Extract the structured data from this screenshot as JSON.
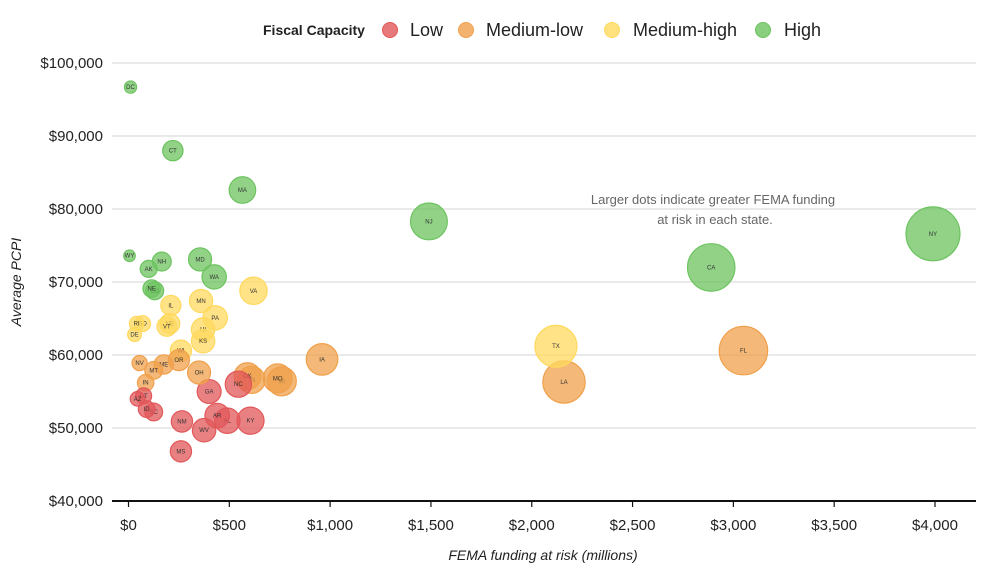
{
  "chart_data": {
    "type": "scatter",
    "xlabel": "FEMA funding at risk (millions)",
    "ylabel": "Average PCPI",
    "xlim": [
      -90,
      4200
    ],
    "ylim": [
      40000,
      100000
    ],
    "x_ticks": [
      0,
      500,
      1000,
      1500,
      2000,
      2500,
      3000,
      3500,
      4000
    ],
    "x_tick_labels": [
      "$0",
      "$500",
      "$1,000",
      "$1,500",
      "$2,000",
      "$2,500",
      "$3,000",
      "$3,500",
      "$4,000"
    ],
    "y_ticks": [
      40000,
      50000,
      60000,
      70000,
      80000,
      90000,
      100000
    ],
    "y_tick_labels": [
      "$40,000",
      "$50,000",
      "$60,000",
      "$70,000",
      "$80,000",
      "$90,000",
      "$100,000"
    ],
    "grid": true,
    "size_encoding": "FEMA funding at risk",
    "annotation": [
      "Larger dots indicate greater FEMA funding",
      "at risk in each state."
    ],
    "legend": {
      "title": "Fiscal Capacity",
      "position": "top",
      "entries": [
        {
          "name": "Low",
          "color": "#e15759"
        },
        {
          "name": "Medium-low",
          "color": "#f0a04b"
        },
        {
          "name": "Medium-high",
          "color": "#ffd95e"
        },
        {
          "name": "High",
          "color": "#6cc35f"
        }
      ]
    },
    "points": [
      {
        "label": "DC",
        "x": 10,
        "y": 96700,
        "group": "High"
      },
      {
        "label": "CT",
        "x": 220,
        "y": 88000,
        "group": "High"
      },
      {
        "label": "MA",
        "x": 565,
        "y": 82600,
        "group": "High"
      },
      {
        "label": "NJ",
        "x": 1490,
        "y": 78300,
        "group": "High"
      },
      {
        "label": "NY",
        "x": 3990,
        "y": 76600,
        "group": "High"
      },
      {
        "label": "CA",
        "x": 2890,
        "y": 72000,
        "group": "High"
      },
      {
        "label": "WY",
        "x": 5,
        "y": 73600,
        "group": "High"
      },
      {
        "label": "NH",
        "x": 165,
        "y": 72800,
        "group": "High"
      },
      {
        "label": "MD",
        "x": 355,
        "y": 73100,
        "group": "High"
      },
      {
        "label": "AK",
        "x": 100,
        "y": 71800,
        "group": "High"
      },
      {
        "label": "WA",
        "x": 425,
        "y": 70700,
        "group": "High"
      },
      {
        "label": "NE",
        "x": 115,
        "y": 69100,
        "group": "High"
      },
      {
        "label": "CO",
        "x": 130,
        "y": 68800,
        "group": "High"
      },
      {
        "label": "VA",
        "x": 620,
        "y": 68800,
        "group": "Medium-high"
      },
      {
        "label": "MN",
        "x": 360,
        "y": 67400,
        "group": "Medium-high"
      },
      {
        "label": "IL",
        "x": 210,
        "y": 66800,
        "group": "Medium-high"
      },
      {
        "label": "PA",
        "x": 430,
        "y": 65100,
        "group": "Medium-high"
      },
      {
        "label": "RI",
        "x": 40,
        "y": 64300,
        "group": "Medium-high"
      },
      {
        "label": "SD",
        "x": 70,
        "y": 64300,
        "group": "Medium-high"
      },
      {
        "label": "NE",
        "x": 205,
        "y": 64300,
        "group": "Medium-high"
      },
      {
        "label": "VT",
        "x": 190,
        "y": 63900,
        "group": "Medium-high"
      },
      {
        "label": "HI",
        "x": 370,
        "y": 63500,
        "group": "Medium-high"
      },
      {
        "label": "DE",
        "x": 30,
        "y": 62800,
        "group": "Medium-high"
      },
      {
        "label": "KS",
        "x": 370,
        "y": 61900,
        "group": "Medium-high"
      },
      {
        "label": "TX",
        "x": 2120,
        "y": 61200,
        "group": "Medium-high"
      },
      {
        "label": "WI",
        "x": 260,
        "y": 60600,
        "group": "Medium-high"
      },
      {
        "label": "FL",
        "x": 3050,
        "y": 60600,
        "group": "Medium-low"
      },
      {
        "label": "IA",
        "x": 960,
        "y": 59400,
        "group": "Medium-low"
      },
      {
        "label": "OR",
        "x": 250,
        "y": 59300,
        "group": "Medium-low"
      },
      {
        "label": "NV",
        "x": 55,
        "y": 58900,
        "group": "Medium-low"
      },
      {
        "label": "ME",
        "x": 175,
        "y": 58700,
        "group": "Medium-low"
      },
      {
        "label": "MT",
        "x": 125,
        "y": 57900,
        "group": "Medium-low"
      },
      {
        "label": "OH",
        "x": 350,
        "y": 57600,
        "group": "Medium-low"
      },
      {
        "label": "OK",
        "x": 590,
        "y": 57100,
        "group": "Medium-low"
      },
      {
        "label": "MO",
        "x": 740,
        "y": 56800,
        "group": "Medium-low"
      },
      {
        "label": "TN",
        "x": 610,
        "y": 56600,
        "group": "Medium-low"
      },
      {
        "label": "MI",
        "x": 760,
        "y": 56400,
        "group": "Medium-low"
      },
      {
        "label": "LA",
        "x": 2160,
        "y": 56300,
        "group": "Medium-low"
      },
      {
        "label": "IN",
        "x": 85,
        "y": 56200,
        "group": "Medium-low"
      },
      {
        "label": "NC",
        "x": 545,
        "y": 56000,
        "group": "Low"
      },
      {
        "label": "GA",
        "x": 400,
        "y": 55000,
        "group": "Low"
      },
      {
        "label": "UT",
        "x": 75,
        "y": 54400,
        "group": "Low"
      },
      {
        "label": "AZ",
        "x": 45,
        "y": 54000,
        "group": "Low"
      },
      {
        "label": "ID",
        "x": 90,
        "y": 52600,
        "group": "Low"
      },
      {
        "label": "SC",
        "x": 125,
        "y": 52200,
        "group": "Low"
      },
      {
        "label": "AR",
        "x": 440,
        "y": 51700,
        "group": "Low"
      },
      {
        "label": "AL",
        "x": 490,
        "y": 51000,
        "group": "Low"
      },
      {
        "label": "KY",
        "x": 605,
        "y": 51000,
        "group": "Low"
      },
      {
        "label": "NM",
        "x": 265,
        "y": 50900,
        "group": "Low"
      },
      {
        "label": "WV",
        "x": 375,
        "y": 49700,
        "group": "Low"
      },
      {
        "label": "MS",
        "x": 260,
        "y": 46800,
        "group": "Low"
      }
    ]
  }
}
